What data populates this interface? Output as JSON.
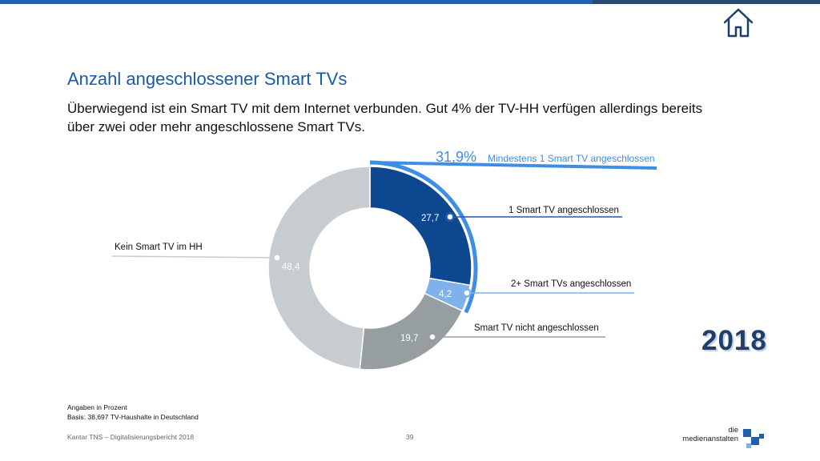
{
  "title": "Anzahl angeschlossener Smart TVs",
  "subtitle": "Überwiegend ist ein Smart TV mit dem Internet verbunden. Gut 4% der TV-HH verfügen allerdings bereits über zwei oder mehr angeschlossene Smart TVs.",
  "chart_data": {
    "type": "pie",
    "variant": "donut",
    "segments": [
      {
        "label": "1 Smart TV angeschlossen",
        "value": 27.7,
        "value_label": "27,7",
        "color": "#0d4790"
      },
      {
        "label": "2+ Smart TVs angeschlossen",
        "value": 4.2,
        "value_label": "4,2",
        "color": "#7fb2ea"
      },
      {
        "label": "Smart TV nicht angeschlossen",
        "value": 19.7,
        "value_label": "19,7",
        "color": "#969ea2"
      },
      {
        "label": "Kein Smart TV im HH",
        "value": 48.4,
        "value_label": "48,4",
        "color": "#c7ccd1"
      }
    ],
    "highlight": {
      "value_label": "31,9%",
      "text": "Mindestens 1 Smart TV angeschlossen",
      "color": "#3f8ee6"
    }
  },
  "notes": {
    "line1": "Angaben in Prozent",
    "line2": "Basis: 38,697 TV-Haushalte in Deutschland"
  },
  "footer": {
    "source": "Kantar TNS – Digitalisierungsbericht 2018",
    "page": "39",
    "brand_line1": "die",
    "brand_line2": "medienanstalten"
  },
  "badge_year": "2018",
  "icons": {
    "home": "home-icon",
    "logo": "medienanstalten-logo"
  }
}
